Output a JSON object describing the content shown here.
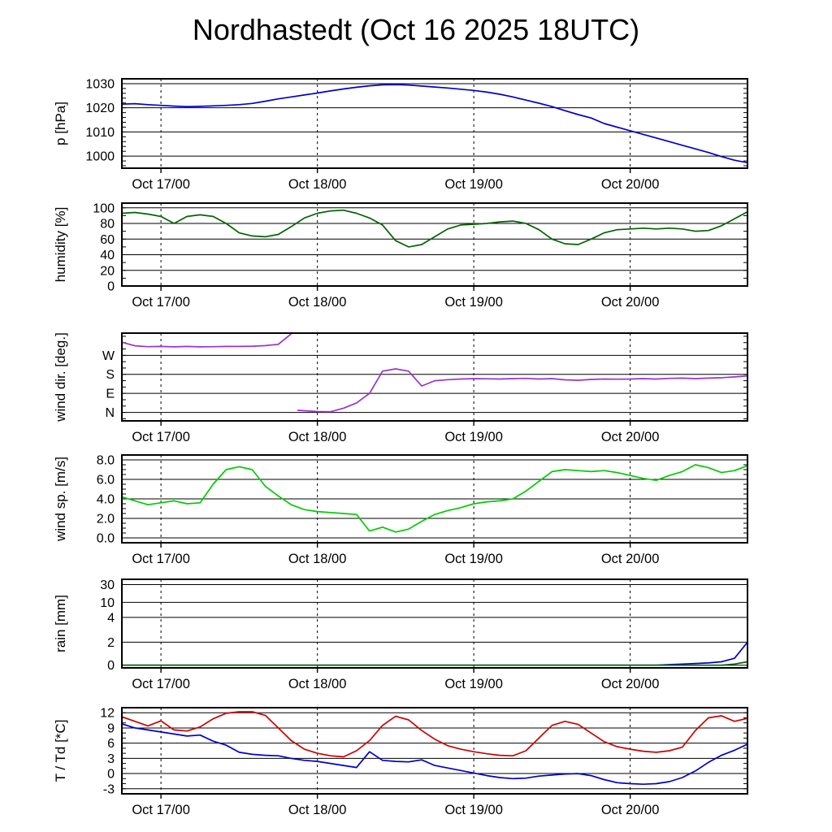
{
  "title": "Nordhastedt (Oct 16 2025 18UTC)",
  "x_axis": {
    "t_start": 0,
    "t_end": 96,
    "hours": [
      0,
      2,
      4,
      6,
      8,
      10,
      12,
      14,
      16,
      18,
      20,
      22,
      24,
      26,
      28,
      30,
      32,
      34,
      36,
      38,
      40,
      42,
      44,
      46,
      48,
      50,
      52,
      54,
      56,
      58,
      60,
      62,
      64,
      66,
      68,
      70,
      72,
      74,
      76,
      78,
      80,
      82,
      84,
      86,
      88,
      90,
      92,
      94,
      96
    ],
    "day_ticks": [
      {
        "t": 6,
        "label": "Oct 17/00"
      },
      {
        "t": 30,
        "label": "Oct 18/00"
      },
      {
        "t": 54,
        "label": "Oct 19/00"
      },
      {
        "t": 78,
        "label": "Oct 20/00"
      }
    ]
  },
  "chart_data": [
    {
      "id": "pressure",
      "type": "line",
      "ylabel": "p [hPa]",
      "ylim": [
        995,
        1032
      ],
      "yticks": [
        1000,
        1010,
        1020,
        1030
      ],
      "ytick_labels": [
        "1000",
        "1010",
        "1020",
        "1030"
      ],
      "minor_step": 2,
      "series": [
        {
          "name": "pressure",
          "color": "#0000cc",
          "values": [
            1021.5,
            1021.7,
            1021.3,
            1021.0,
            1020.7,
            1020.5,
            1020.6,
            1020.8,
            1021.0,
            1021.3,
            1021.8,
            1022.7,
            1023.7,
            1024.5,
            1025.3,
            1026.1,
            1027.0,
            1027.8,
            1028.5,
            1029.1,
            1029.5,
            1029.6,
            1029.4,
            1029.0,
            1028.6,
            1028.2,
            1027.7,
            1027.2,
            1026.5,
            1025.6,
            1024.5,
            1023.2,
            1021.9,
            1020.5,
            1018.8,
            1017.2,
            1015.8,
            1013.5,
            1012.0,
            1010.5,
            1009.0,
            1007.5,
            1006.0,
            1004.5,
            1003.0,
            1001.5,
            999.8,
            998.3,
            997.3
          ]
        }
      ]
    },
    {
      "id": "humidity",
      "type": "line",
      "ylabel": "humidity [%]",
      "ylim": [
        0,
        106
      ],
      "yticks": [
        0,
        20,
        40,
        60,
        80,
        100
      ],
      "ytick_labels": [
        "0",
        "20",
        "40",
        "60",
        "80",
        "100"
      ],
      "minor_step": 10,
      "series": [
        {
          "name": "relative-humidity",
          "color": "#006400",
          "values": [
            93,
            94,
            92,
            89,
            80,
            89,
            91,
            89,
            80,
            68,
            64,
            63,
            66,
            76,
            87,
            93,
            96,
            97,
            93,
            87,
            78,
            58,
            50,
            53,
            63,
            73,
            78,
            79,
            80,
            82,
            83,
            80,
            72,
            60,
            54,
            53,
            60,
            68,
            72,
            73,
            74,
            73,
            74,
            73,
            70,
            71,
            77,
            86,
            95
          ]
        }
      ]
    },
    {
      "id": "wind-direction",
      "type": "line",
      "ylabel": "wind dir. [deg.]",
      "ylim": [
        -40,
        375
      ],
      "yticks": [
        0,
        90,
        180,
        270
      ],
      "ytick_labels": [
        "N",
        "E",
        "S",
        "W"
      ],
      "minor_step": 30,
      "wrap_degrees": true,
      "x": [
        0,
        2,
        4,
        6,
        8,
        10,
        12,
        14,
        16,
        18,
        20,
        22,
        24,
        26,
        27,
        28,
        30,
        32,
        34,
        36,
        38,
        40,
        42,
        44,
        46,
        48,
        50,
        52,
        54,
        56,
        58,
        60,
        62,
        64,
        66,
        68,
        70,
        72,
        74,
        76,
        78,
        80,
        82,
        84,
        86,
        88,
        90,
        92,
        94,
        96
      ],
      "series": [
        {
          "name": "wind-direction",
          "color": "#9933cc",
          "values": [
            332,
            315,
            311,
            312,
            310,
            312,
            310,
            311,
            312,
            312,
            313,
            316,
            322,
            372,
            10,
            8,
            4,
            3,
            20,
            45,
            90,
            195,
            206,
            195,
            125,
            150,
            155,
            158,
            160,
            159,
            158,
            160,
            161,
            158,
            160,
            154,
            152,
            156,
            158,
            157,
            158,
            160,
            158,
            161,
            162,
            160,
            162,
            164,
            168,
            173
          ]
        }
      ]
    },
    {
      "id": "wind-speed",
      "type": "line",
      "ylabel": "wind sp. [m/s]",
      "ylim": [
        -0.5,
        8.5
      ],
      "yticks": [
        0,
        2,
        4,
        6,
        8
      ],
      "ytick_labels": [
        "0.0",
        "2.0",
        "4.0",
        "6.0",
        "8.0"
      ],
      "minor_step": 0.5,
      "series": [
        {
          "name": "wind-speed",
          "color": "#00cc00",
          "values": [
            4.2,
            3.8,
            3.4,
            3.6,
            3.8,
            3.5,
            3.6,
            5.5,
            7.0,
            7.3,
            7.0,
            5.3,
            4.3,
            3.4,
            2.9,
            2.7,
            2.6,
            2.5,
            2.4,
            0.7,
            1.1,
            0.6,
            0.9,
            1.7,
            2.4,
            2.8,
            3.1,
            3.5,
            3.7,
            3.8,
            4.0,
            4.8,
            5.8,
            6.8,
            7.0,
            6.9,
            6.8,
            6.9,
            6.7,
            6.4,
            6.1,
            5.9,
            6.4,
            6.8,
            7.5,
            7.2,
            6.7,
            6.9,
            7.4
          ]
        }
      ]
    },
    {
      "id": "rain",
      "type": "line",
      "ylabel": "rain [mm]",
      "yticks": [
        0,
        2,
        4,
        10,
        30
      ],
      "ytick_labels": [
        "0",
        "2",
        "4",
        "10",
        "30"
      ],
      "y_anchors": [
        [
          0,
          0.03
        ],
        [
          2,
          0.29
        ],
        [
          4,
          0.57
        ],
        [
          10,
          0.74
        ],
        [
          30,
          0.94
        ]
      ],
      "series": [
        {
          "name": "rain-total",
          "color": "#0000cc",
          "values": [
            0,
            0,
            0,
            0,
            0,
            0,
            0,
            0,
            0,
            0,
            0,
            0,
            0,
            0,
            0,
            0,
            0,
            0,
            0,
            0,
            0,
            0,
            0,
            0,
            0,
            0,
            0,
            0,
            0,
            0,
            0,
            0,
            0,
            0,
            0,
            0,
            0,
            0,
            0,
            0,
            0,
            0,
            0.05,
            0.1,
            0.15,
            0.2,
            0.3,
            0.6,
            2.0
          ]
        },
        {
          "name": "rain-convective",
          "color": "#006400",
          "values": [
            0,
            0,
            0,
            0,
            0,
            0,
            0,
            0,
            0,
            0,
            0,
            0,
            0,
            0,
            0,
            0,
            0,
            0,
            0,
            0,
            0,
            0,
            0,
            0,
            0,
            0,
            0,
            0,
            0,
            0,
            0,
            0,
            0,
            0,
            0,
            0,
            0,
            0,
            0,
            0,
            0,
            0,
            0,
            0,
            0,
            0,
            0,
            0.1,
            0.3
          ]
        }
      ]
    },
    {
      "id": "temperature",
      "type": "line",
      "ylabel": "T / Td [*C]",
      "ylim": [
        -4,
        13
      ],
      "yticks": [
        -3,
        0,
        3,
        6,
        9,
        12
      ],
      "ytick_labels": [
        "-3",
        "0",
        "3",
        "6",
        "9",
        "12"
      ],
      "minor_step": 1,
      "series": [
        {
          "name": "temperature",
          "color": "#cc0000",
          "values": [
            11.2,
            10.3,
            9.4,
            10.4,
            8.6,
            8.4,
            9.2,
            10.8,
            11.9,
            12.2,
            12.2,
            11.5,
            9.0,
            6.5,
            4.8,
            4.0,
            3.5,
            3.3,
            4.5,
            6.5,
            9.5,
            11.3,
            10.6,
            8.5,
            6.8,
            5.5,
            4.8,
            4.3,
            3.9,
            3.6,
            3.5,
            4.5,
            7.0,
            9.5,
            10.3,
            9.7,
            8.0,
            6.3,
            5.3,
            4.8,
            4.4,
            4.2,
            4.5,
            5.2,
            8.5,
            11.0,
            11.4,
            10.3,
            10.9
          ]
        },
        {
          "name": "dew-point",
          "color": "#0000cc",
          "values": [
            9.8,
            9.0,
            8.6,
            8.2,
            7.8,
            7.4,
            7.6,
            6.4,
            5.6,
            4.2,
            3.8,
            3.6,
            3.5,
            3.0,
            2.6,
            2.4,
            2.0,
            1.6,
            1.2,
            4.3,
            2.6,
            2.4,
            2.3,
            2.7,
            1.6,
            1.1,
            0.6,
            0.1,
            -0.4,
            -0.8,
            -1.0,
            -0.9,
            -0.5,
            -0.3,
            -0.1,
            0.0,
            -0.4,
            -1.2,
            -1.8,
            -2.0,
            -2.1,
            -2.0,
            -1.6,
            -0.8,
            0.5,
            2.2,
            3.6,
            4.6,
            5.8
          ]
        }
      ]
    }
  ]
}
